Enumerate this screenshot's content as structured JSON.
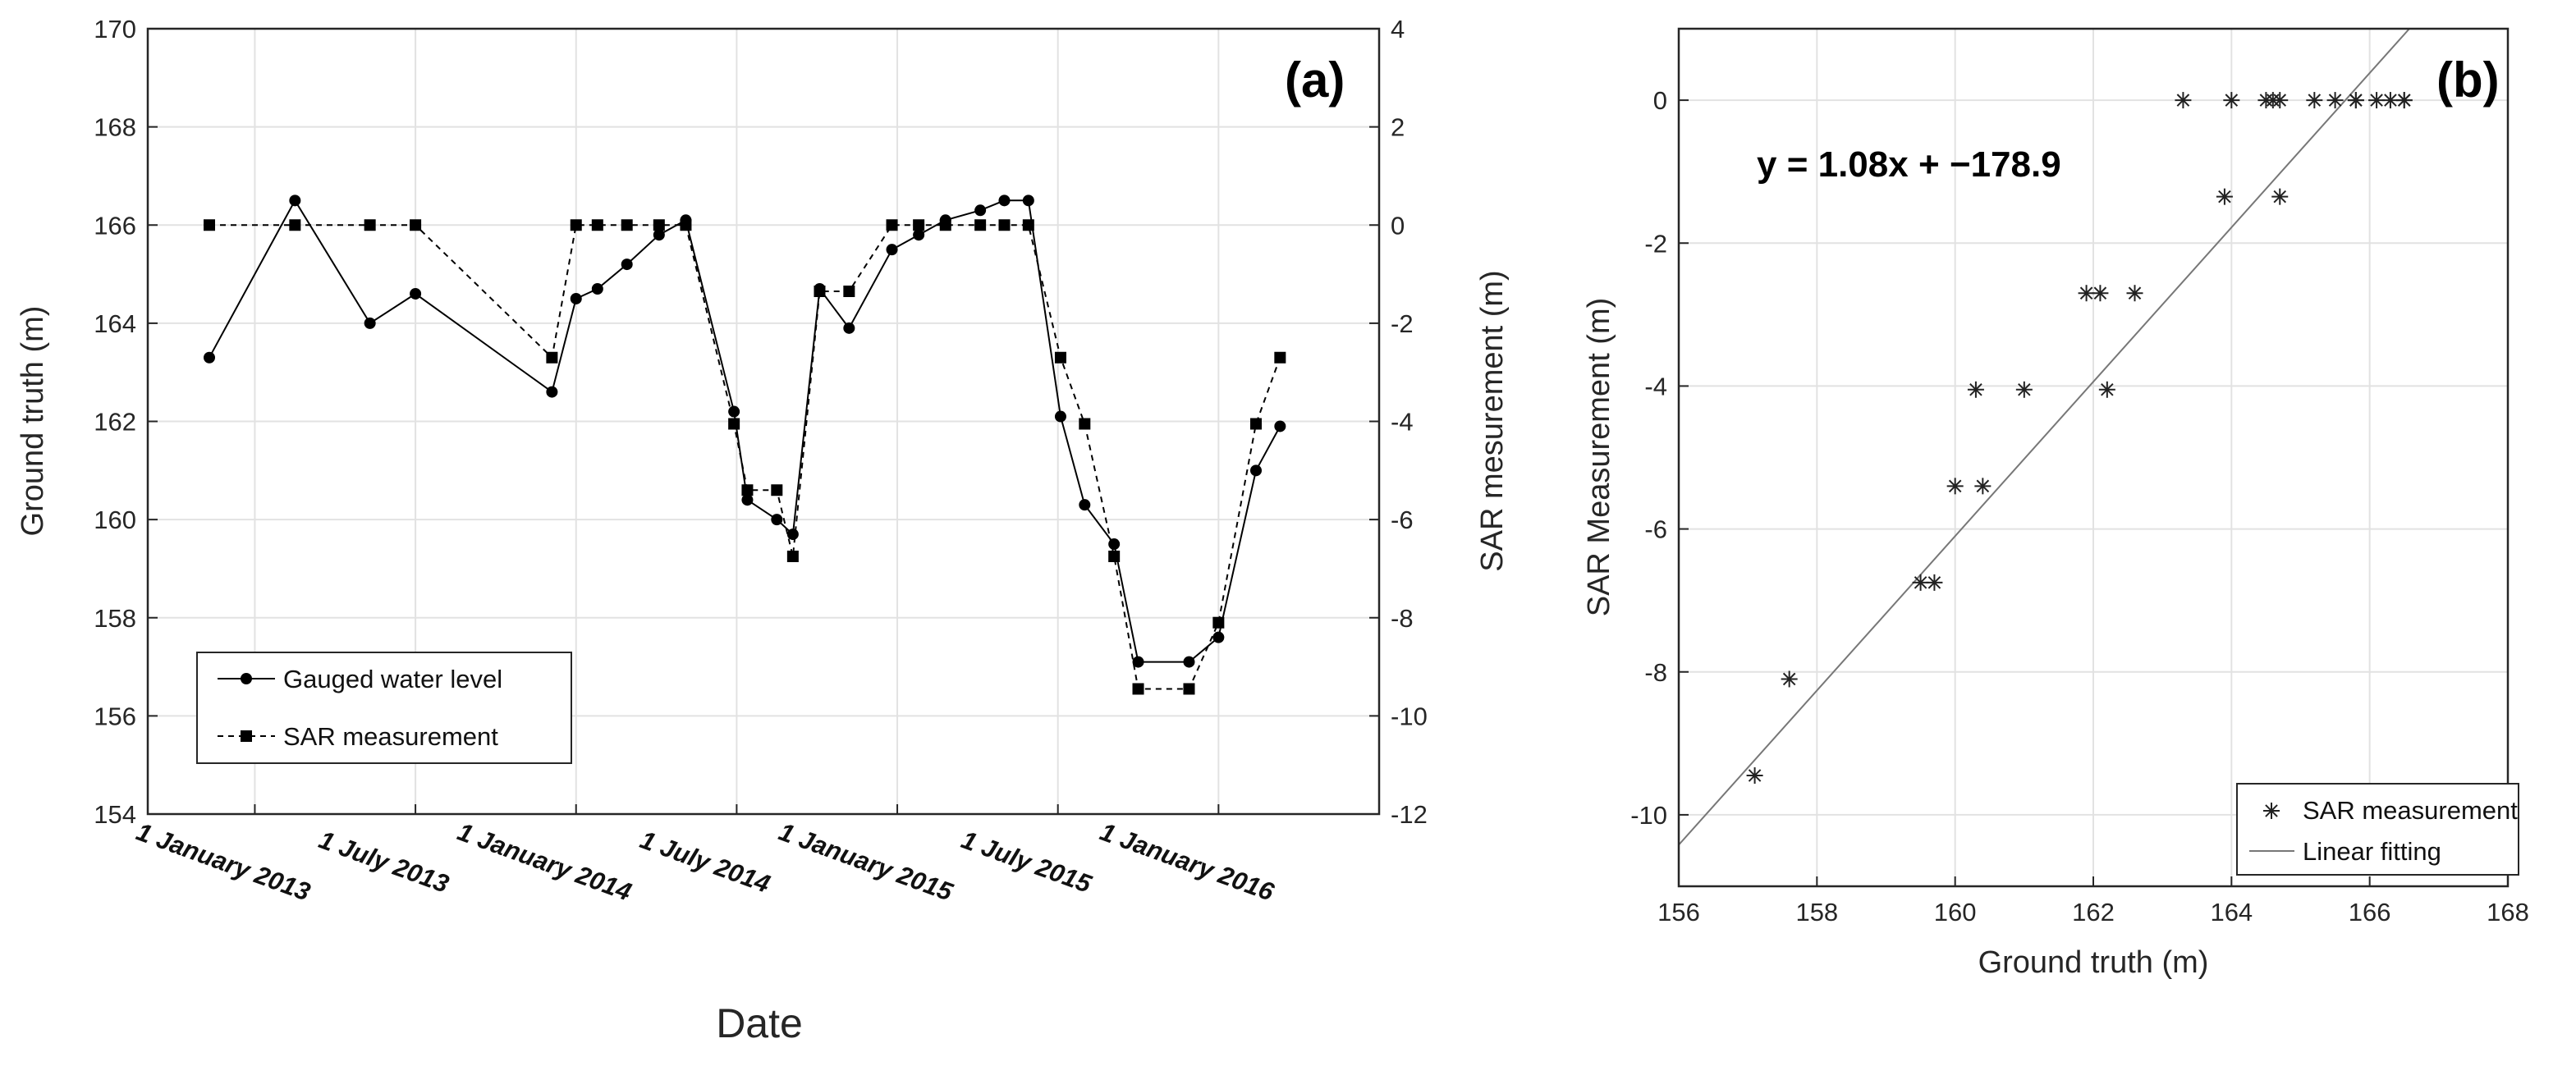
{
  "chart_data": [
    {
      "type": "line",
      "panel_label": "(a)",
      "xlabel": "Date",
      "ylabel_left": "Ground truth (m)",
      "ylabel_right": "SAR mesurement (m)",
      "x_tick_labels": [
        "1 January 2013",
        "1 July 2013",
        "1 January 2014",
        "1 July 2014",
        "1 January 2015",
        "1 July 2015",
        "1 January 2016"
      ],
      "x_ticks_months": [
        0,
        6,
        12,
        18,
        24,
        30,
        36
      ],
      "xlim_months": [
        -4,
        42
      ],
      "ylim_left": [
        154,
        170
      ],
      "yticks_left": [
        "154",
        "156",
        "158",
        "160",
        "162",
        "164",
        "166",
        "168",
        "170"
      ],
      "ylim_right": [
        -12,
        4
      ],
      "yticks_right": [
        "-12",
        "-10",
        "-8",
        "-6",
        "-4",
        "-2",
        "0",
        "2",
        "4"
      ],
      "grid": true,
      "legend_position": "bottom-left",
      "series": [
        {
          "name": "Gauged water level",
          "axis": "left",
          "style": "solid-circle",
          "x_months": [
            -1.7,
            1.5,
            4.3,
            6.0,
            11.1,
            12.0,
            12.8,
            13.9,
            15.1,
            16.1,
            17.9,
            18.4,
            19.5,
            20.1,
            21.1,
            22.2,
            23.8,
            24.8,
            25.8,
            27.1,
            28.0,
            28.9,
            30.1,
            31.0,
            32.1,
            33.0,
            34.9,
            36.0,
            37.4,
            38.3
          ],
          "values": [
            163.3,
            166.5,
            164.0,
            164.6,
            162.6,
            164.5,
            164.7,
            165.2,
            165.8,
            166.1,
            162.2,
            160.4,
            160.0,
            159.7,
            164.7,
            163.9,
            165.5,
            165.8,
            166.1,
            166.3,
            166.5,
            166.5,
            162.1,
            160.3,
            159.5,
            157.1,
            157.1,
            157.6,
            161.0,
            161.9
          ]
        },
        {
          "name": "SAR measurement",
          "axis": "right",
          "style": "dashed-square",
          "x_months": [
            -1.7,
            1.5,
            4.3,
            6.0,
            11.1,
            12.0,
            12.8,
            13.9,
            15.1,
            16.1,
            17.9,
            18.4,
            19.5,
            20.1,
            21.1,
            22.2,
            23.8,
            24.8,
            25.8,
            27.1,
            28.0,
            28.9,
            30.1,
            31.0,
            32.1,
            33.0,
            34.9,
            36.0,
            37.4,
            38.3
          ],
          "values": [
            0,
            0,
            0,
            0,
            -2.7,
            0,
            0,
            0,
            0,
            0,
            -4.05,
            -5.4,
            -5.4,
            -6.75,
            -1.35,
            -1.35,
            0,
            0,
            0,
            0,
            0,
            0,
            -2.7,
            -4.05,
            -6.75,
            -9.45,
            -9.45,
            -8.1,
            -4.05,
            -2.7
          ]
        }
      ]
    },
    {
      "type": "scatter",
      "panel_label": "(b)",
      "xlabel": "Ground truth (m)",
      "ylabel": "SAR Measurement (m)",
      "xlim": [
        156,
        168
      ],
      "xticks": [
        "156",
        "158",
        "160",
        "162",
        "164",
        "166",
        "168"
      ],
      "ylim": [
        -11,
        1
      ],
      "yticks": [
        "-10",
        "-8",
        "-6",
        "-4",
        "-2",
        "0"
      ],
      "grid": true,
      "legend_position": "bottom-right",
      "equation": "y = 1.08x + −178.9",
      "fit": {
        "slope": 1.08,
        "intercept": -178.9,
        "name": "Linear fitting"
      },
      "series": [
        {
          "name": "SAR measurement",
          "marker": "asterisk",
          "x": [
            157.1,
            157.6,
            159.5,
            159.7,
            160.0,
            160.3,
            160.4,
            161.0,
            161.9,
            162.1,
            162.2,
            162.6,
            163.3,
            163.9,
            164.0,
            164.5,
            164.6,
            164.7,
            164.7,
            165.2,
            165.5,
            165.8,
            165.8,
            166.1,
            166.3,
            166.5,
            166.5
          ],
          "y": [
            -9.45,
            -8.1,
            -6.75,
            -6.75,
            -5.4,
            -4.05,
            -5.4,
            -4.05,
            -2.7,
            -2.7,
            -4.05,
            -2.7,
            0,
            -1.35,
            0,
            0,
            0,
            0,
            -1.35,
            0,
            0,
            0,
            0,
            0,
            0,
            0,
            0
          ]
        }
      ]
    }
  ]
}
